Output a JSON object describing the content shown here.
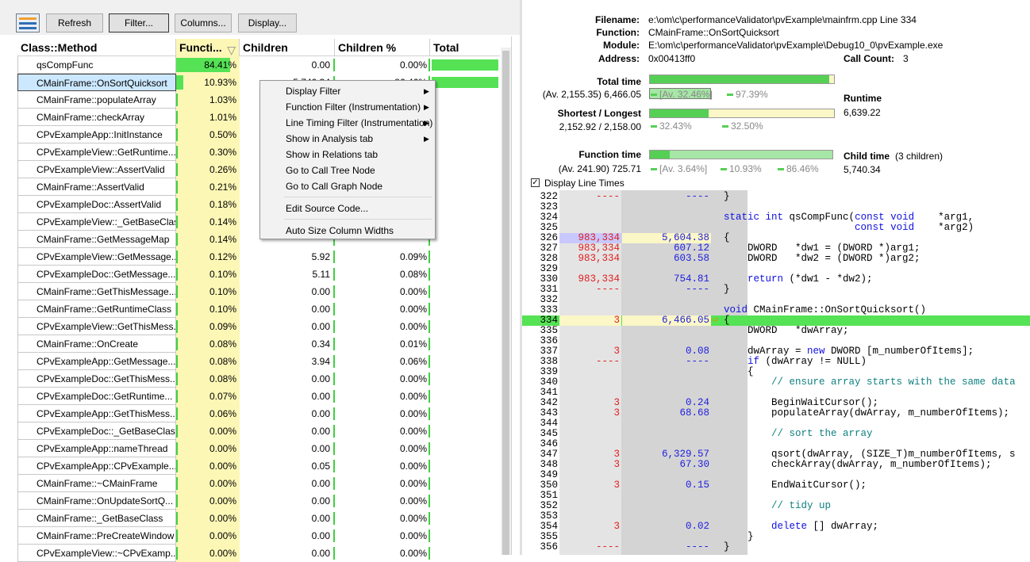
{
  "toolbar": {
    "refresh": "Refresh",
    "filter": "Filter...",
    "columns": "Columns...",
    "display": "Display..."
  },
  "columns": [
    "Class::Method",
    "Functi...",
    "Children",
    "Children %",
    "Total"
  ],
  "rows": [
    {
      "name": "qsCompFunc",
      "func": "84.41%",
      "func_frac": 0.8441,
      "children": "0.00",
      "children_pct": "0.00%",
      "total_frac": 1.0
    },
    {
      "name": "CMainFrame::OnSortQuicksort",
      "func": "10.93%",
      "func_frac": 0.1093,
      "children": "5,740.34",
      "children_pct": "86.46%",
      "total_frac": 1.0,
      "selected": true
    },
    {
      "name": "CMainFrame::populateArray",
      "func": "1.03%",
      "func_frac": 0.0103
    },
    {
      "name": "CMainFrame::checkArray",
      "func": "1.01%",
      "func_frac": 0.0101
    },
    {
      "name": "CPvExampleApp::InitInstance",
      "func": "0.50%",
      "func_frac": 0.005
    },
    {
      "name": "CPvExampleView::GetRuntime...",
      "func": "0.30%",
      "func_frac": 0.003
    },
    {
      "name": "CPvExampleView::AssertValid",
      "func": "0.26%",
      "func_frac": 0.0026
    },
    {
      "name": "CMainFrame::AssertValid",
      "func": "0.21%",
      "func_frac": 0.0021
    },
    {
      "name": "CPvExampleDoc::AssertValid",
      "func": "0.18%",
      "func_frac": 0.0018
    },
    {
      "name": "CPvExampleView::_GetBaseClass",
      "func": "0.14%",
      "func_frac": 0.0014
    },
    {
      "name": "CMainFrame::GetMessageMap",
      "func": "0.14%",
      "func_frac": 0.0014
    },
    {
      "name": "CPvExampleView::GetMessage...",
      "func": "0.12%",
      "func_frac": 0.0012,
      "children": "5.92",
      "children_pct": "0.09%"
    },
    {
      "name": "CPvExampleDoc::GetMessage...",
      "func": "0.10%",
      "func_frac": 0.001,
      "children": "5.11",
      "children_pct": "0.08%"
    },
    {
      "name": "CMainFrame::GetThisMessage...",
      "func": "0.10%",
      "func_frac": 0.001,
      "children": "0.00",
      "children_pct": "0.00%"
    },
    {
      "name": "CMainFrame::GetRuntimeClass",
      "func": "0.10%",
      "func_frac": 0.001,
      "children": "0.00",
      "children_pct": "0.00%"
    },
    {
      "name": "CPvExampleView::GetThisMess...",
      "func": "0.09%",
      "func_frac": 0.0009,
      "children": "0.00",
      "children_pct": "0.00%"
    },
    {
      "name": "CMainFrame::OnCreate",
      "func": "0.08%",
      "func_frac": 0.0008,
      "children": "0.34",
      "children_pct": "0.01%"
    },
    {
      "name": "CPvExampleApp::GetMessage...",
      "func": "0.08%",
      "func_frac": 0.0008,
      "children": "3.94",
      "children_pct": "0.06%"
    },
    {
      "name": "CPvExampleDoc::GetThisMess...",
      "func": "0.08%",
      "func_frac": 0.0008,
      "children": "0.00",
      "children_pct": "0.00%"
    },
    {
      "name": "CPvExampleDoc::GetRuntime...",
      "func": "0.07%",
      "func_frac": 0.0007,
      "children": "0.00",
      "children_pct": "0.00%"
    },
    {
      "name": "CPvExampleApp::GetThisMess...",
      "func": "0.06%",
      "func_frac": 0.0006,
      "children": "0.00",
      "children_pct": "0.00%"
    },
    {
      "name": "CPvExampleDoc::_GetBaseClass",
      "func": "0.00%",
      "func_frac": 0.0,
      "children": "0.00",
      "children_pct": "0.00%"
    },
    {
      "name": "CPvExampleApp::nameThread",
      "func": "0.00%",
      "func_frac": 0.0,
      "children": "0.00",
      "children_pct": "0.00%"
    },
    {
      "name": "CPvExampleApp::CPvExample...",
      "func": "0.00%",
      "func_frac": 0.0,
      "children": "0.05",
      "children_pct": "0.00%"
    },
    {
      "name": "CMainFrame::~CMainFrame",
      "func": "0.00%",
      "func_frac": 0.0,
      "children": "0.00",
      "children_pct": "0.00%"
    },
    {
      "name": "CMainFrame::OnUpdateSortQ...",
      "func": "0.00%",
      "func_frac": 0.0,
      "children": "0.00",
      "children_pct": "0.00%"
    },
    {
      "name": "CMainFrame::_GetBaseClass",
      "func": "0.00%",
      "func_frac": 0.0,
      "children": "0.00",
      "children_pct": "0.00%"
    },
    {
      "name": "CMainFrame::PreCreateWindow",
      "func": "0.00%",
      "func_frac": 0.0,
      "children": "0.00",
      "children_pct": "0.00%"
    },
    {
      "name": "CPvExampleView::~CPvExamp...",
      "func": "0.00%",
      "func_frac": 0.0,
      "children": "0.00",
      "children_pct": "0.00%"
    }
  ],
  "context_menu": {
    "items": [
      {
        "label": "Display Filter",
        "submenu": true
      },
      {
        "label": "Function Filter (Instrumentation)",
        "submenu": true
      },
      {
        "label": "Line Timing Filter (Instrumentation)",
        "submenu": true
      },
      {
        "label": "Show in Analysis tab",
        "submenu": true
      },
      {
        "label": "Show in Relations tab",
        "submenu": false
      },
      {
        "label": "Go to Call Tree Node",
        "submenu": false
      },
      {
        "label": "Go to Call Graph Node",
        "submenu": false
      },
      {
        "label": "Edit Source Code...",
        "submenu": false
      },
      {
        "label": "Auto Size Column Widths",
        "submenu": false
      }
    ]
  },
  "details": {
    "filename_label": "Filename:",
    "filename": "e:\\om\\c\\performanceValidator\\pvExample\\mainfrm.cpp Line 334",
    "function_label": "Function:",
    "function": "CMainFrame::OnSortQuicksort",
    "module_label": "Module:",
    "module": "E:\\om\\c\\performanceValidator\\pvExample\\Debug10_0\\pvExample.exe",
    "address_label": "Address:",
    "address": "0x00413ff0",
    "callcount_label": "Call Count:",
    "callcount": "3",
    "total_time_label": "Total time",
    "total_time_value": "(Av. 2,155.35) 6,466.05",
    "total_pct1": "[Av. 32.46%]",
    "total_pct2": "97.39%",
    "runtime_label": "Runtime",
    "runtime_value": "6,639.22",
    "short_long_label": "Shortest / Longest",
    "short_long_value": "2,152.92 / 2,158.00",
    "short_pct": "32.43%",
    "long_pct": "32.50%",
    "function_time_label": "Function time",
    "function_time_value": "(Av. 241.90) 725.71",
    "func_pct1": "[Av. 3.64%]",
    "func_pct2": "10.93%",
    "func_pct3": "86.46%",
    "child_time_label": "Child time",
    "child_count": "(3 children)",
    "child_time_value": "5,740.34",
    "display_line_times": "Display Line Times"
  },
  "code_lines": [
    {
      "ln": "322",
      "cnt": "----",
      "tm": "----",
      "src": "}"
    },
    {
      "ln": "323",
      "cnt": "",
      "tm": "",
      "src": ""
    },
    {
      "ln": "324",
      "cnt": "",
      "tm": "",
      "src": "static int qsCompFunc(const void    *arg1,"
    },
    {
      "ln": "325",
      "cnt": "",
      "tm": "",
      "src": "                      const void    *arg2)"
    },
    {
      "ln": "326",
      "cnt": "983,334",
      "tm": "5,604.38",
      "src": "{",
      "hl": "blue"
    },
    {
      "ln": "327",
      "cnt": "983,334",
      "tm": "607.12",
      "src": "    DWORD   *dw1 = (DWORD *)arg1;"
    },
    {
      "ln": "328",
      "cnt": "983,334",
      "tm": "603.58",
      "src": "    DWORD   *dw2 = (DWORD *)arg2;"
    },
    {
      "ln": "329",
      "cnt": "",
      "tm": "",
      "src": ""
    },
    {
      "ln": "330",
      "cnt": "983,334",
      "tm": "754.81",
      "src": "    return (*dw1 - *dw2);"
    },
    {
      "ln": "331",
      "cnt": "----",
      "tm": "----",
      "src": "}"
    },
    {
      "ln": "332",
      "cnt": "",
      "tm": "",
      "src": ""
    },
    {
      "ln": "333",
      "cnt": "",
      "tm": "",
      "src": "void CMainFrame::OnSortQuicksort()"
    },
    {
      "ln": "334",
      "cnt": "3",
      "tm": "6,466.05",
      "src": "{",
      "hl": "current"
    },
    {
      "ln": "335",
      "cnt": "",
      "tm": "",
      "src": "    DWORD   *dwArray;"
    },
    {
      "ln": "336",
      "cnt": "",
      "tm": "",
      "src": ""
    },
    {
      "ln": "337",
      "cnt": "3",
      "tm": "0.08",
      "src": "    dwArray = new DWORD [m_numberOfItems];"
    },
    {
      "ln": "338",
      "cnt": "----",
      "tm": "----",
      "src": "    if (dwArray != NULL)"
    },
    {
      "ln": "339",
      "cnt": "",
      "tm": "",
      "src": "    {"
    },
    {
      "ln": "340",
      "cnt": "",
      "tm": "",
      "src": "        // ensure array starts with the same data"
    },
    {
      "ln": "341",
      "cnt": "",
      "tm": "",
      "src": ""
    },
    {
      "ln": "342",
      "cnt": "3",
      "tm": "0.24",
      "src": "        BeginWaitCursor();"
    },
    {
      "ln": "343",
      "cnt": "3",
      "tm": "68.68",
      "src": "        populateArray(dwArray, m_numberOfItems);"
    },
    {
      "ln": "344",
      "cnt": "",
      "tm": "",
      "src": ""
    },
    {
      "ln": "345",
      "cnt": "",
      "tm": "",
      "src": "        // sort the array"
    },
    {
      "ln": "346",
      "cnt": "",
      "tm": "",
      "src": ""
    },
    {
      "ln": "347",
      "cnt": "3",
      "tm": "6,329.57",
      "src": "        qsort(dwArray, (SIZE_T)m_numberOfItems, s"
    },
    {
      "ln": "348",
      "cnt": "3",
      "tm": "67.30",
      "src": "        checkArray(dwArray, m_numberOfItems);"
    },
    {
      "ln": "349",
      "cnt": "",
      "tm": "",
      "src": ""
    },
    {
      "ln": "350",
      "cnt": "3",
      "tm": "0.15",
      "src": "        EndWaitCursor();"
    },
    {
      "ln": "351",
      "cnt": "",
      "tm": "",
      "src": ""
    },
    {
      "ln": "352",
      "cnt": "",
      "tm": "",
      "src": "        // tidy up"
    },
    {
      "ln": "353",
      "cnt": "",
      "tm": "",
      "src": ""
    },
    {
      "ln": "354",
      "cnt": "3",
      "tm": "0.02",
      "src": "        delete [] dwArray;"
    },
    {
      "ln": "355",
      "cnt": "",
      "tm": "",
      "src": "    }"
    },
    {
      "ln": "356",
      "cnt": "----",
      "tm": "----",
      "src": "}"
    }
  ],
  "colors": {
    "accent_green": "#55e255",
    "highlight_yellow": "#fdf7b6",
    "selection_blue": "#cce8ff"
  }
}
